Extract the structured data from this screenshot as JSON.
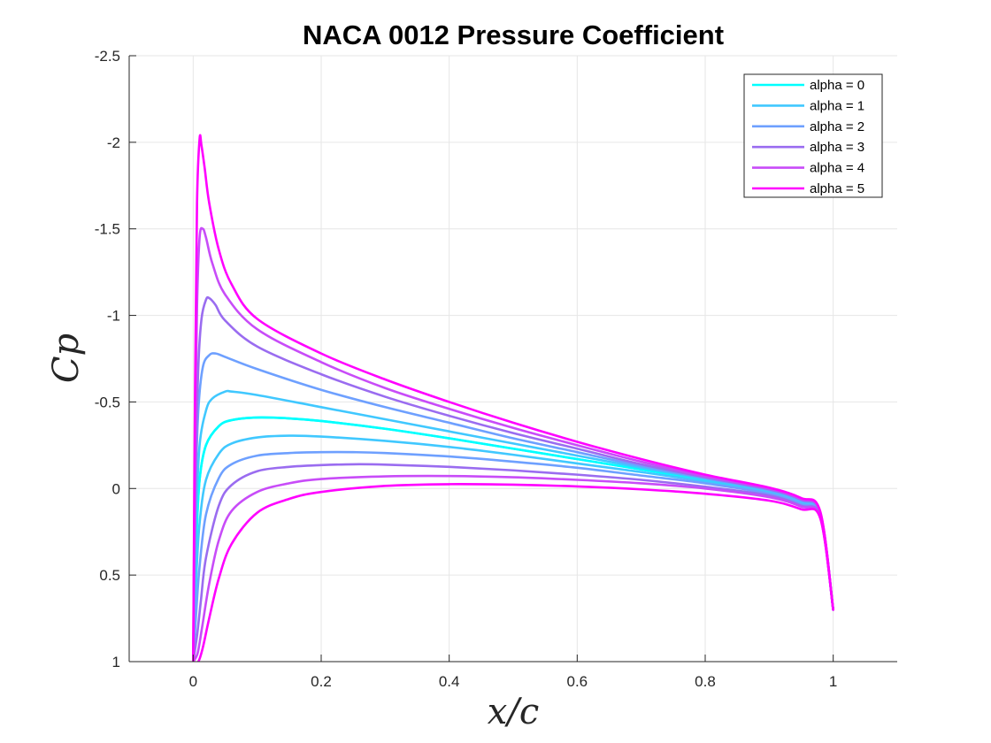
{
  "chart_data": {
    "type": "line",
    "title": "NACA 0012 Pressure Coefficient",
    "xlabel": "x/c",
    "ylabel": "Cp",
    "xlim": [
      -0.1,
      1.1
    ],
    "ylim": [
      -2.5,
      1
    ],
    "y_reversed": true,
    "grid": true,
    "legend_position": "top-right",
    "x_ticks": [
      0,
      0.2,
      0.4,
      0.6,
      0.8,
      1
    ],
    "x_tick_labels": [
      "0",
      "0.2",
      "0.4",
      "0.6",
      "0.8",
      "1"
    ],
    "y_ticks": [
      -2.5,
      -2,
      -1.5,
      -1,
      -0.5,
      0,
      0.5,
      1
    ],
    "y_tick_labels": [
      "-2.5",
      "-2",
      "-1.5",
      "-1",
      "-0.5",
      "0",
      "0.5",
      "1"
    ],
    "series": [
      {
        "name": "alpha = 0",
        "color": "#00ffff",
        "upper": {
          "x": [
            0,
            0.005,
            0.01,
            0.02,
            0.04,
            0.06,
            0.1,
            0.15,
            0.2,
            0.3,
            0.4,
            0.5,
            0.6,
            0.7,
            0.8,
            0.9,
            0.95,
            0.98,
            1.0
          ],
          "y": [
            1.0,
            0.3,
            -0.05,
            -0.25,
            -0.36,
            -0.395,
            -0.41,
            -0.405,
            -0.39,
            -0.345,
            -0.29,
            -0.23,
            -0.17,
            -0.11,
            -0.05,
            0.02,
            0.08,
            0.15,
            0.7
          ]
        },
        "lower": {
          "x": [
            0,
            0.005,
            0.01,
            0.02,
            0.04,
            0.06,
            0.1,
            0.15,
            0.2,
            0.3,
            0.4,
            0.5,
            0.6,
            0.7,
            0.8,
            0.9,
            0.95,
            0.98,
            1.0
          ],
          "y": [
            1.0,
            0.3,
            -0.05,
            -0.25,
            -0.36,
            -0.395,
            -0.41,
            -0.405,
            -0.39,
            -0.345,
            -0.29,
            -0.23,
            -0.17,
            -0.11,
            -0.05,
            0.02,
            0.08,
            0.15,
            0.7
          ]
        }
      },
      {
        "name": "alpha = 1",
        "color": "#40c8ff",
        "upper": {
          "x": [
            0,
            0.005,
            0.01,
            0.02,
            0.03,
            0.05,
            0.06,
            0.1,
            0.2,
            0.3,
            0.4,
            0.5,
            0.6,
            0.7,
            0.8,
            0.9,
            0.95,
            0.98,
            1.0
          ],
          "y": [
            1.0,
            0.15,
            -0.25,
            -0.45,
            -0.52,
            -0.56,
            -0.56,
            -0.54,
            -0.47,
            -0.4,
            -0.33,
            -0.26,
            -0.19,
            -0.12,
            -0.055,
            0.015,
            0.075,
            0.15,
            0.7
          ]
        },
        "lower": {
          "x": [
            0,
            0.005,
            0.01,
            0.02,
            0.04,
            0.06,
            0.1,
            0.15,
            0.2,
            0.3,
            0.4,
            0.5,
            0.6,
            0.7,
            0.8,
            0.9,
            0.95,
            0.98,
            1.0
          ],
          "y": [
            1.0,
            0.5,
            0.2,
            -0.05,
            -0.2,
            -0.26,
            -0.295,
            -0.305,
            -0.3,
            -0.275,
            -0.24,
            -0.195,
            -0.145,
            -0.095,
            -0.04,
            0.025,
            0.085,
            0.16,
            0.7
          ]
        }
      },
      {
        "name": "alpha = 2",
        "color": "#6ea0ff",
        "upper": {
          "x": [
            0,
            0.004,
            0.008,
            0.015,
            0.025,
            0.035,
            0.05,
            0.1,
            0.2,
            0.3,
            0.4,
            0.5,
            0.6,
            0.7,
            0.8,
            0.9,
            0.95,
            0.98,
            1.0
          ],
          "y": [
            1.0,
            0.0,
            -0.45,
            -0.7,
            -0.77,
            -0.78,
            -0.76,
            -0.69,
            -0.57,
            -0.47,
            -0.38,
            -0.29,
            -0.21,
            -0.13,
            -0.06,
            0.01,
            0.07,
            0.145,
            0.7
          ]
        },
        "lower": {
          "x": [
            0,
            0.005,
            0.01,
            0.02,
            0.04,
            0.06,
            0.1,
            0.15,
            0.2,
            0.25,
            0.3,
            0.4,
            0.5,
            0.6,
            0.7,
            0.8,
            0.9,
            0.95,
            0.98,
            1.0
          ],
          "y": [
            1.0,
            0.7,
            0.45,
            0.15,
            -0.06,
            -0.14,
            -0.19,
            -0.205,
            -0.21,
            -0.21,
            -0.205,
            -0.185,
            -0.155,
            -0.12,
            -0.075,
            -0.03,
            0.03,
            0.09,
            0.16,
            0.7
          ]
        }
      },
      {
        "name": "alpha = 3",
        "color": "#9a6cf0",
        "upper": {
          "x": [
            0,
            0.004,
            0.008,
            0.013,
            0.02,
            0.025,
            0.035,
            0.05,
            0.1,
            0.2,
            0.3,
            0.4,
            0.5,
            0.6,
            0.7,
            0.8,
            0.9,
            0.95,
            0.98,
            1.0
          ],
          "y": [
            1.0,
            -0.1,
            -0.7,
            -0.98,
            -1.09,
            -1.1,
            -1.06,
            -0.97,
            -0.82,
            -0.66,
            -0.53,
            -0.42,
            -0.32,
            -0.23,
            -0.14,
            -0.065,
            0.005,
            0.065,
            0.145,
            0.7
          ]
        },
        "lower": {
          "x": [
            0,
            0.006,
            0.012,
            0.02,
            0.04,
            0.06,
            0.1,
            0.15,
            0.2,
            0.25,
            0.3,
            0.4,
            0.5,
            0.6,
            0.7,
            0.8,
            0.9,
            0.95,
            0.98,
            1.0
          ],
          "y": [
            1.0,
            0.85,
            0.65,
            0.4,
            0.1,
            -0.02,
            -0.1,
            -0.125,
            -0.135,
            -0.14,
            -0.138,
            -0.125,
            -0.105,
            -0.08,
            -0.05,
            -0.01,
            0.04,
            0.1,
            0.165,
            0.7
          ]
        }
      },
      {
        "name": "alpha = 4",
        "color": "#c84cf8",
        "upper": {
          "x": [
            0,
            0.003,
            0.006,
            0.01,
            0.015,
            0.02,
            0.03,
            0.05,
            0.1,
            0.2,
            0.3,
            0.4,
            0.5,
            0.6,
            0.7,
            0.8,
            0.9,
            0.95,
            0.98,
            1.0
          ],
          "y": [
            1.0,
            -0.3,
            -1.05,
            -1.45,
            -1.5,
            -1.45,
            -1.3,
            -1.12,
            -0.92,
            -0.73,
            -0.58,
            -0.46,
            -0.35,
            -0.25,
            -0.155,
            -0.07,
            0.0,
            0.06,
            0.14,
            0.7
          ]
        },
        "lower": {
          "x": [
            0,
            0.007,
            0.014,
            0.025,
            0.04,
            0.06,
            0.1,
            0.15,
            0.2,
            0.3,
            0.4,
            0.5,
            0.6,
            0.7,
            0.8,
            0.9,
            0.95,
            0.98,
            1.0
          ],
          "y": [
            1.0,
            0.95,
            0.8,
            0.55,
            0.3,
            0.13,
            0.02,
            -0.03,
            -0.055,
            -0.07,
            -0.072,
            -0.065,
            -0.05,
            -0.03,
            0.0,
            0.05,
            0.105,
            0.17,
            0.7
          ]
        }
      },
      {
        "name": "alpha = 5",
        "color": "#ff00ff",
        "upper": {
          "x": [
            0,
            0.003,
            0.006,
            0.01,
            0.013,
            0.018,
            0.025,
            0.04,
            0.06,
            0.1,
            0.2,
            0.3,
            0.4,
            0.5,
            0.6,
            0.7,
            0.8,
            0.9,
            0.95,
            0.98,
            1.0
          ],
          "y": [
            1.0,
            -0.6,
            -1.65,
            -2.02,
            -1.98,
            -1.85,
            -1.65,
            -1.38,
            -1.18,
            -0.98,
            -0.78,
            -0.63,
            -0.5,
            -0.38,
            -0.27,
            -0.17,
            -0.08,
            -0.005,
            0.055,
            0.135,
            0.7
          ]
        },
        "lower": {
          "x": [
            0,
            0.008,
            0.015,
            0.025,
            0.04,
            0.06,
            0.1,
            0.15,
            0.2,
            0.3,
            0.4,
            0.5,
            0.6,
            0.7,
            0.8,
            0.9,
            0.95,
            0.98,
            1.0
          ],
          "y": [
            1.0,
            1.0,
            0.92,
            0.75,
            0.52,
            0.32,
            0.14,
            0.06,
            0.02,
            -0.015,
            -0.025,
            -0.022,
            -0.012,
            0.005,
            0.03,
            0.07,
            0.12,
            0.175,
            0.7
          ]
        }
      }
    ]
  }
}
